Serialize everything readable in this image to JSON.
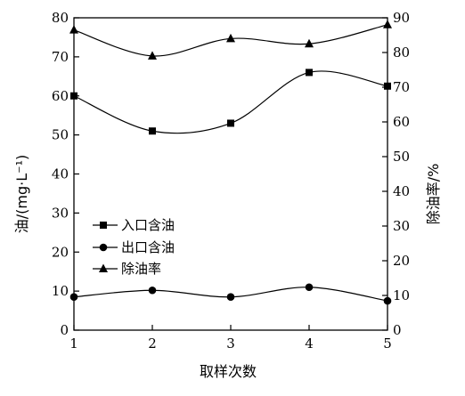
{
  "chart_data": {
    "type": "line",
    "x": [
      1,
      2,
      3,
      4,
      5
    ],
    "xlabel": "取样次数",
    "ylabel_left": "油/(mg·L⁻¹)",
    "ylabel_right": "除油率/%",
    "xlim": [
      1,
      5
    ],
    "ylim_left": [
      0,
      80
    ],
    "ylim_right": [
      0,
      90
    ],
    "xticks": [
      "1",
      "2",
      "3",
      "4",
      "5"
    ],
    "yticks_left": [
      "0",
      "10",
      "20",
      "30",
      "40",
      "50",
      "60",
      "70",
      "80"
    ],
    "yticks_right": [
      "0",
      "10",
      "20",
      "30",
      "40",
      "50",
      "60",
      "70",
      "80",
      "90"
    ],
    "grid": false,
    "legend_position": "left-middle",
    "series": [
      {
        "name": "入口含油",
        "axis": "left",
        "marker": "square",
        "values": [
          60,
          51,
          53,
          66,
          62.5
        ]
      },
      {
        "name": "出口含油",
        "axis": "left",
        "marker": "circle",
        "values": [
          8.5,
          10.2,
          8.5,
          11,
          7.5
        ]
      },
      {
        "name": "除油率",
        "axis": "right",
        "marker": "triangle",
        "values": [
          86.5,
          79,
          84,
          82.5,
          88
        ]
      }
    ]
  }
}
